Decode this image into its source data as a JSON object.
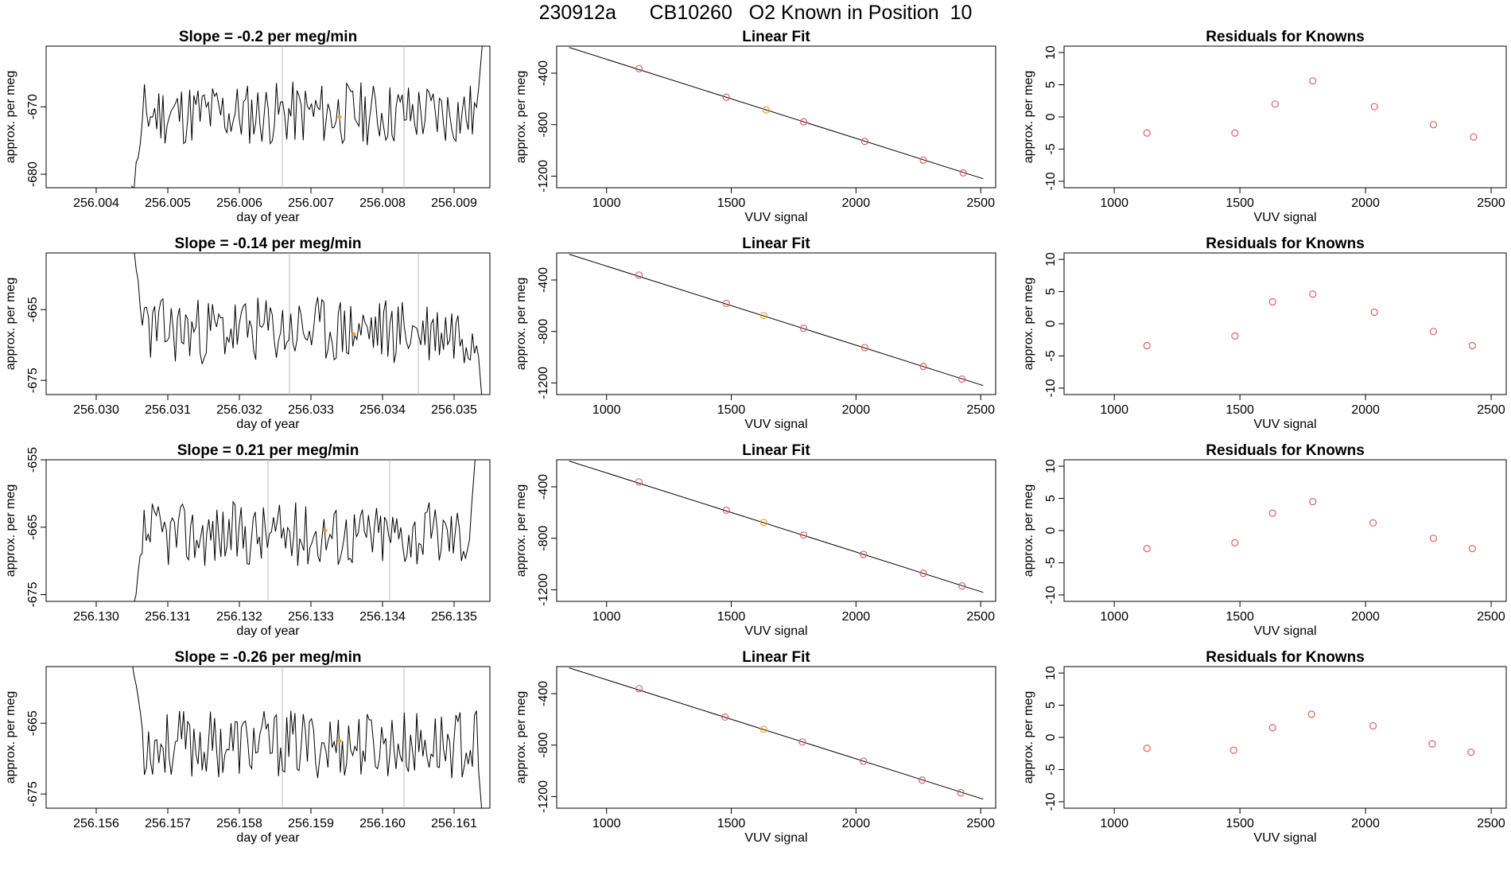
{
  "page": {
    "title": "230912a      CB10260   O2 Known in Position  10"
  },
  "colors": {
    "line": "#000000",
    "known": "#e06060",
    "highlight": "#f0a020",
    "box": "#000000",
    "vline": "#bbbbbb"
  },
  "chart_data": [
    {
      "id": "r1-series",
      "type": "line",
      "title": "Slope =  -0.2  per meg/min",
      "xlabel": "day of year",
      "ylabel": "approx. per meg",
      "xlim": [
        256.0033,
        256.0095
      ],
      "ylim": [
        -682,
        -661
      ],
      "xticks": [
        "256.004",
        "256.005",
        "256.006",
        "256.007",
        "256.008",
        "256.009"
      ],
      "yticks": [
        "-670",
        "-680"
      ],
      "start_x": 256.0045,
      "end_x": 256.0094,
      "level": -671,
      "noise": 3,
      "seed": 11,
      "start_level": -683,
      "end_level": -660,
      "vlines": [
        256.0066,
        256.0083
      ],
      "marker": {
        "x": 256.0074,
        "y": -671.5
      }
    },
    {
      "id": "r1-fit",
      "type": "scatter",
      "title": "Linear Fit",
      "xlabel": "VUV signal",
      "ylabel": "approx. per meg",
      "xlim": [
        800,
        2560
      ],
      "ylim": [
        -1290,
        -190
      ],
      "xticks": [
        "1000",
        "1500",
        "2000",
        "2500"
      ],
      "yticks": [
        "-400",
        "-800",
        "-1200"
      ],
      "line": [
        [
          850,
          -200
        ],
        [
          2510,
          -1220
        ]
      ],
      "x": [
        1130,
        1480,
        1640,
        1790,
        2035,
        2270,
        2430
      ],
      "y": [
        -365,
        -587,
        -686,
        -778,
        -930,
        -1075,
        -1175
      ],
      "highlight_index": 2
    },
    {
      "id": "r1-resid",
      "type": "scatter",
      "title": "Residuals for Knowns",
      "xlabel": "VUV signal",
      "ylabel": "approx. per meg",
      "xlim": [
        800,
        2560
      ],
      "ylim": [
        -11,
        11
      ],
      "xticks": [
        "1000",
        "1500",
        "2000",
        "2500"
      ],
      "yticks": [
        "10",
        "5",
        "0",
        "-5",
        "-10"
      ],
      "x": [
        1130,
        1480,
        1640,
        1790,
        2035,
        2270,
        2430
      ],
      "y": [
        -2.5,
        -2.5,
        2.0,
        5.6,
        1.6,
        -1.2,
        -3.1
      ]
    },
    {
      "id": "r2-series",
      "type": "line",
      "title": "Slope =  -0.14  per meg/min",
      "xlabel": "day of year",
      "ylabel": "approx. per meg",
      "xlim": [
        256.0293,
        256.0355
      ],
      "ylim": [
        -677,
        -657
      ],
      "xticks": [
        "256.030",
        "256.031",
        "256.032",
        "256.033",
        "256.034",
        "256.035"
      ],
      "yticks": [
        "-665",
        "-675"
      ],
      "start_x": 256.0305,
      "end_x": 256.0354,
      "level": -668,
      "noise": 3,
      "seed": 23,
      "start_level": -655,
      "end_level": -679,
      "vlines": [
        256.0327,
        256.0345
      ],
      "marker": {
        "x": 256.0336,
        "y": -668.5
      }
    },
    {
      "id": "r2-fit",
      "type": "scatter",
      "title": "Linear Fit",
      "xlabel": "VUV signal",
      "ylabel": "approx. per meg",
      "xlim": [
        800,
        2560
      ],
      "ylim": [
        -1290,
        -190
      ],
      "xticks": [
        "1000",
        "1500",
        "2000",
        "2500"
      ],
      "yticks": [
        "-400",
        "-800",
        "-1200"
      ],
      "line": [
        [
          850,
          -200
        ],
        [
          2510,
          -1220
        ]
      ],
      "x": [
        1130,
        1480,
        1630,
        1790,
        2035,
        2270,
        2425
      ],
      "y": [
        -362,
        -582,
        -677,
        -775,
        -925,
        -1072,
        -1170
      ],
      "highlight_index": 2
    },
    {
      "id": "r2-resid",
      "type": "scatter",
      "title": "Residuals for Knowns",
      "xlabel": "VUV signal",
      "ylabel": "approx. per meg",
      "xlim": [
        800,
        2560
      ],
      "ylim": [
        -11,
        11
      ],
      "xticks": [
        "1000",
        "1500",
        "2000",
        "2500"
      ],
      "yticks": [
        "10",
        "5",
        "0",
        "-5",
        "-10"
      ],
      "x": [
        1130,
        1480,
        1630,
        1790,
        2035,
        2270,
        2425
      ],
      "y": [
        -3.4,
        -1.9,
        3.4,
        4.6,
        1.8,
        -1.2,
        -3.4
      ]
    },
    {
      "id": "r3-series",
      "type": "line",
      "title": "Slope =  0.21  per meg/min",
      "xlabel": "day of year",
      "ylabel": "approx. per meg",
      "xlim": [
        256.1293,
        256.1355
      ],
      "ylim": [
        -676,
        -655
      ],
      "xticks": [
        "256.130",
        "256.131",
        "256.132",
        "256.133",
        "256.134",
        "256.135"
      ],
      "yticks": [
        "-655",
        "-665",
        "-675"
      ],
      "start_x": 256.1305,
      "end_x": 256.1353,
      "level": -666,
      "noise": 3,
      "seed": 37,
      "start_level": -679,
      "end_level": -654,
      "vlines": [
        256.1324,
        256.1341
      ],
      "marker": {
        "x": 256.1332,
        "y": -665.5
      }
    },
    {
      "id": "r3-fit",
      "type": "scatter",
      "title": "Linear Fit",
      "xlabel": "VUV signal",
      "ylabel": "approx. per meg",
      "xlim": [
        800,
        2560
      ],
      "ylim": [
        -1290,
        -190
      ],
      "xticks": [
        "1000",
        "1500",
        "2000",
        "2500"
      ],
      "yticks": [
        "-400",
        "-800",
        "-1200"
      ],
      "line": [
        [
          850,
          -200
        ],
        [
          2510,
          -1220
        ]
      ],
      "x": [
        1130,
        1480,
        1630,
        1790,
        2030,
        2270,
        2425
      ],
      "y": [
        -362,
        -582,
        -677,
        -775,
        -925,
        -1072,
        -1170
      ],
      "highlight_index": 2
    },
    {
      "id": "r3-resid",
      "type": "scatter",
      "title": "Residuals for Knowns",
      "xlabel": "VUV signal",
      "ylabel": "approx. per meg",
      "xlim": [
        800,
        2560
      ],
      "ylim": [
        -11,
        11
      ],
      "xticks": [
        "1000",
        "1500",
        "2000",
        "2500"
      ],
      "yticks": [
        "10",
        "5",
        "0",
        "-5",
        "-10"
      ],
      "x": [
        1130,
        1480,
        1630,
        1790,
        2030,
        2270,
        2425
      ],
      "y": [
        -2.8,
        -1.9,
        2.7,
        4.5,
        1.2,
        -1.2,
        -2.8
      ]
    },
    {
      "id": "r4-series",
      "type": "line",
      "title": "Slope =  -0.26  per meg/min",
      "xlabel": "day of year",
      "ylabel": "approx. per meg",
      "xlim": [
        256.1553,
        256.1615
      ],
      "ylim": [
        -677,
        -657
      ],
      "xticks": [
        "256.156",
        "256.157",
        "256.158",
        "256.159",
        "256.160",
        "256.161"
      ],
      "yticks": [
        "-665",
        "-675"
      ],
      "start_x": 256.1565,
      "end_x": 256.1614,
      "level": -668,
      "noise": 3,
      "seed": 53,
      "start_level": -655,
      "end_level": -679,
      "vlines": [
        256.1586,
        256.1603
      ],
      "marker": {
        "x": 256.1594,
        "y": -667.5
      }
    },
    {
      "id": "r4-fit",
      "type": "scatter",
      "title": "Linear Fit",
      "xlabel": "VUV signal",
      "ylabel": "approx. per meg",
      "xlim": [
        800,
        2560
      ],
      "ylim": [
        -1290,
        -190
      ],
      "xticks": [
        "1000",
        "1500",
        "2000",
        "2500"
      ],
      "yticks": [
        "-400",
        "-800",
        "-1200"
      ],
      "line": [
        [
          850,
          -200
        ],
        [
          2510,
          -1220
        ]
      ],
      "x": [
        1130,
        1475,
        1630,
        1785,
        2030,
        2265,
        2420
      ],
      "y": [
        -362,
        -582,
        -677,
        -775,
        -925,
        -1072,
        -1170
      ],
      "highlight_index": 2
    },
    {
      "id": "r4-resid",
      "type": "scatter",
      "title": "Residuals for Knowns",
      "xlabel": "VUV signal",
      "ylabel": "approx. per meg",
      "xlim": [
        800,
        2560
      ],
      "ylim": [
        -11,
        11
      ],
      "xticks": [
        "1000",
        "1500",
        "2000",
        "2500"
      ],
      "yticks": [
        "10",
        "5",
        "0",
        "-5",
        "-10"
      ],
      "x": [
        1130,
        1475,
        1630,
        1785,
        2030,
        2265,
        2420
      ],
      "y": [
        -1.7,
        -2.0,
        1.5,
        3.6,
        1.8,
        -1.0,
        -2.3
      ]
    }
  ]
}
